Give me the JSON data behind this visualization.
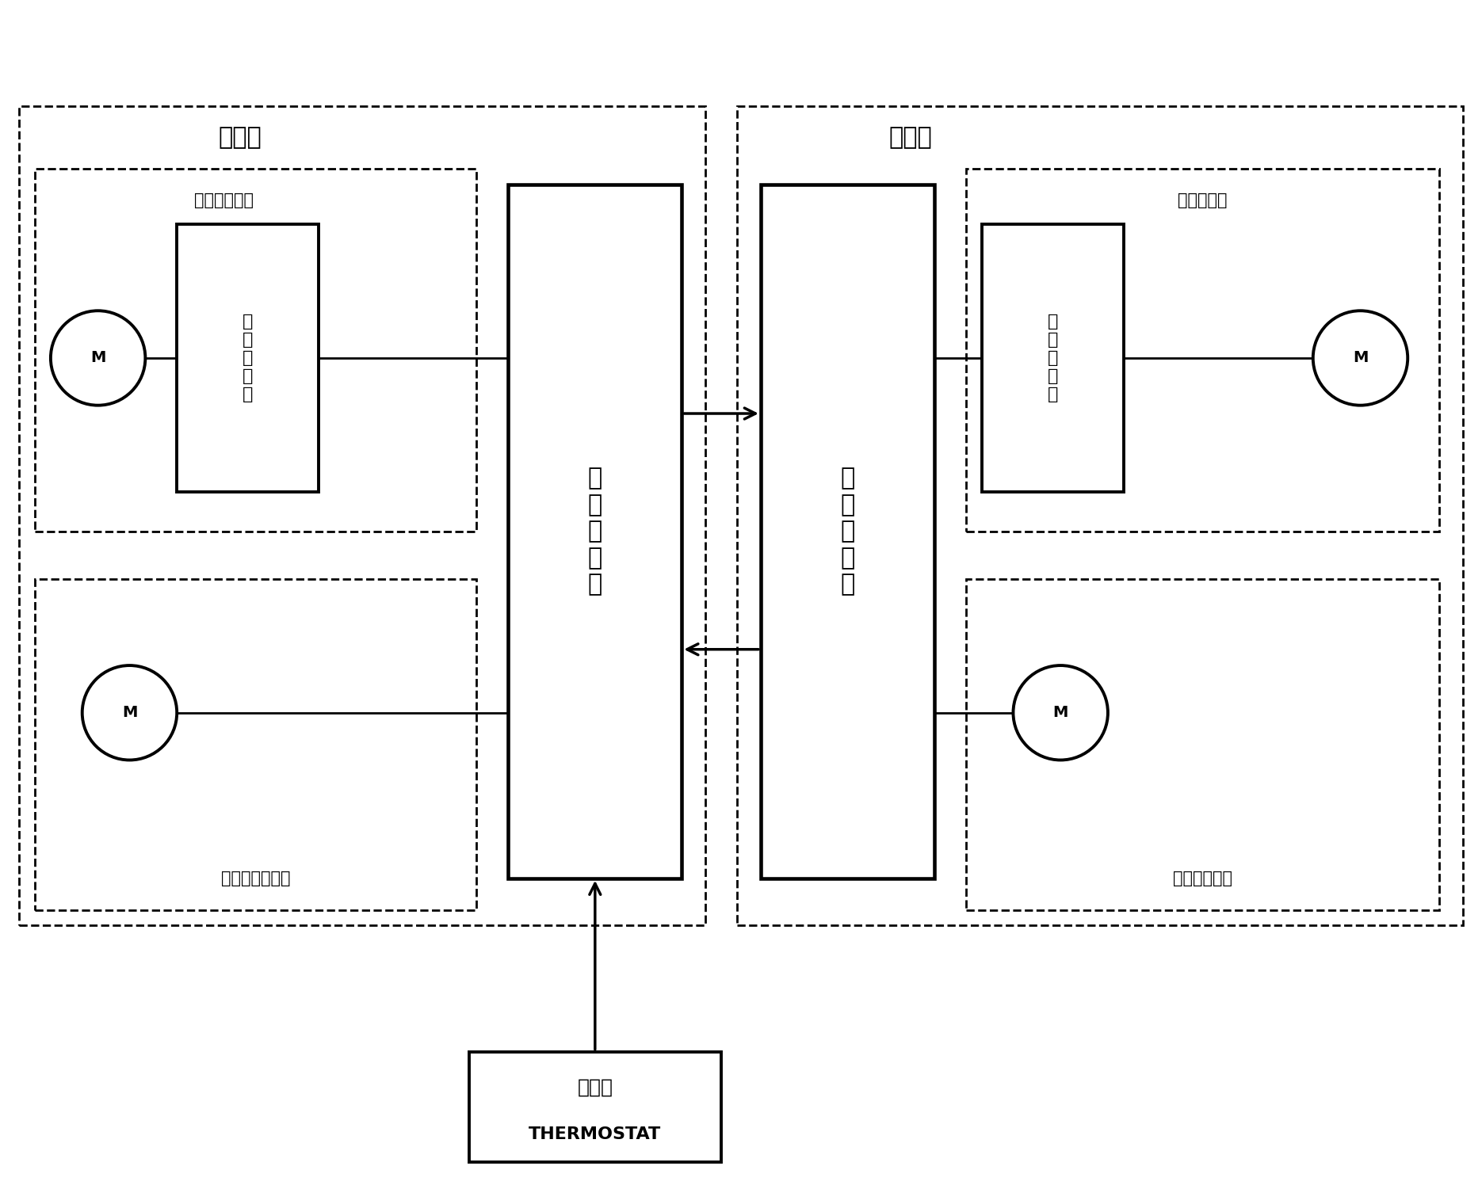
{
  "bg_color": "#ffffff",
  "indoor_unit_label": "室内机",
  "outdoor_unit_label": "室外机",
  "centrifugal_fan_label": "离心式鼓风机",
  "gas_fan_label": "燃气引风机电机",
  "compressor_label": "压缩机电机",
  "axial_fan_label": "轴流风扇电机",
  "indoor_ctrl_label": "室\n内\n控\n制\n器",
  "outdoor_ctrl_label": "室\n外\n控\n制\n器",
  "motor_ctrl_label": "电\n机\n控\n制\n器",
  "thermostat_label": "温控器",
  "thermostat_sub": "THERMOSTAT",
  "M_label": "M"
}
